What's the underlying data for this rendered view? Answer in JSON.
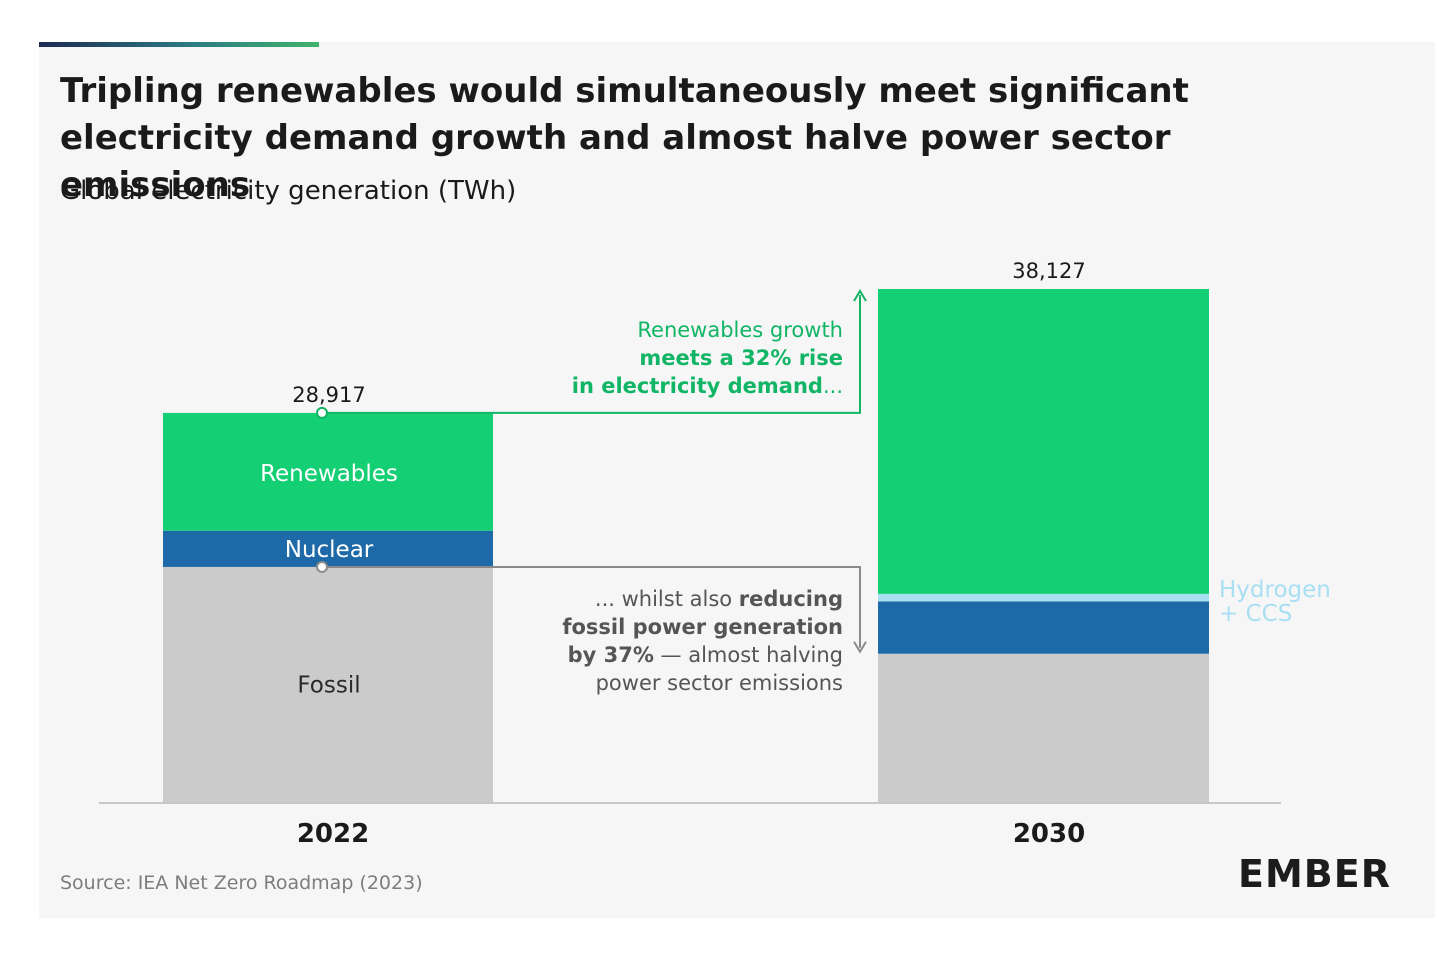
{
  "title": "Tripling renewables would simultaneously meet significant electricity demand growth and almost halve power sector emissions",
  "subtitle": "Global electricity generation (TWh)",
  "source": "Source: IEA Net Zero Roadmap (2023)",
  "logo": "EMBER",
  "colors": {
    "renewables": "#14cf73",
    "nuclear": "#1e6aa8",
    "hydrogen_ccs": "#a8dff3",
    "fossil": "#cbcbcb",
    "annotation_green": "#11b565",
    "annotation_gray": "#555555"
  },
  "chart_data": {
    "type": "bar",
    "stacked": true,
    "categories": [
      "2022",
      "2030"
    ],
    "totals": [
      "28,917",
      "38,127"
    ],
    "total_values": [
      28917,
      38127
    ],
    "series": [
      {
        "name": "Fossil",
        "values": [
          17470,
          11020
        ],
        "color": "#cbcbcb"
      },
      {
        "name": "Nuclear",
        "values": [
          2690,
          3890
        ],
        "color": "#1e6aa8"
      },
      {
        "name": "Hydrogen + CCS",
        "values": [
          0,
          560
        ],
        "color": "#a8dff3"
      },
      {
        "name": "Renewables",
        "values": [
          8757,
          22657
        ],
        "color": "#14cf73"
      }
    ],
    "segment_labels": {
      "renewables": "Renewables",
      "nuclear": "Nuclear",
      "fossil": "Fossil"
    },
    "side_label": [
      "Hydrogen",
      "+ CCS"
    ],
    "ylim": [
      0,
      38127
    ],
    "grid": false,
    "annotations": {
      "renewables": [
        [
          {
            "t": "Renewables growth",
            "b": false
          }
        ],
        [
          {
            "t": "meets a 32% rise",
            "b": true
          }
        ],
        [
          {
            "t": "in electricity demand",
            "b": true
          },
          {
            "t": "...",
            "b": false
          }
        ]
      ],
      "fossil": [
        [
          {
            "t": "... whilst also ",
            "b": false
          },
          {
            "t": "reducing",
            "b": true
          }
        ],
        [
          {
            "t": "fossil power generation",
            "b": true
          }
        ],
        [
          {
            "t": "by 37%",
            "b": true
          },
          {
            "t": " — almost halving",
            "b": false
          }
        ],
        [
          {
            "t": "power sector emissions",
            "b": false
          }
        ]
      ]
    }
  }
}
